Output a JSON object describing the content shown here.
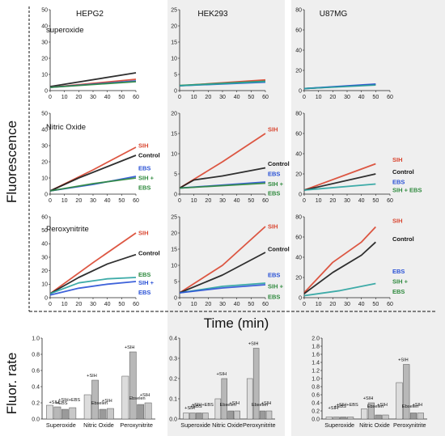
{
  "y_axis_label": "Fluorescence",
  "x_axis_label": "Time (min)",
  "rate_axis_label": "Fluor. rate",
  "colors": {
    "SIH": "#d9452f",
    "Control": "#1a1a1a",
    "EBS": "#2a52d6",
    "SIH + EBS": "#2f8a3e",
    "teal": "#2aa3a0"
  },
  "columns": [
    "HEPG2",
    "HEK293",
    "U87MG"
  ],
  "rows": [
    "superoxide",
    "Nitric Oxide",
    "Peroxynitrite"
  ],
  "chart_data": {
    "type": "line",
    "x_ticks": [
      0,
      10,
      20,
      30,
      40,
      50,
      60
    ],
    "panels": [
      {
        "col": 0,
        "row": 0,
        "ylim": [
          0,
          50
        ],
        "yticks": [
          0,
          10,
          20,
          30,
          40,
          50
        ],
        "series": [
          {
            "name": "Control",
            "color": "#1a1a1a",
            "values": [
              [
                0,
                2.5
              ],
              [
                60,
                11
              ]
            ]
          },
          {
            "name": "SIH",
            "color": "#d9452f",
            "values": [
              [
                0,
                2
              ],
              [
                60,
                7
              ]
            ]
          },
          {
            "name": "EBS",
            "color": "#2a52d6",
            "values": [
              [
                0,
                2
              ],
              [
                60,
                6
              ]
            ]
          },
          {
            "name": "SIH + EBS",
            "color": "#2f8a3e",
            "values": [
              [
                0,
                2
              ],
              [
                60,
                5.5
              ]
            ]
          }
        ],
        "labels": []
      },
      {
        "col": 1,
        "row": 0,
        "ylim": [
          0,
          25
        ],
        "yticks": [
          0,
          5,
          10,
          15,
          20,
          25
        ],
        "series": [
          {
            "name": "SIH",
            "color": "#d9452f",
            "values": [
              [
                0,
                1.5
              ],
              [
                60,
                3.3
              ]
            ]
          },
          {
            "name": "EBS",
            "color": "#2a52d6",
            "values": [
              [
                0,
                1.5
              ],
              [
                60,
                2.6
              ]
            ]
          },
          {
            "name": "SIH + EBS",
            "color": "#2f8a3e",
            "values": [
              [
                0,
                1.6
              ],
              [
                60,
                2.9
              ]
            ]
          },
          {
            "name": "Control",
            "color": "#2aa3a0",
            "values": [
              [
                0,
                1.5
              ],
              [
                60,
                2.8
              ]
            ]
          }
        ],
        "labels": []
      },
      {
        "col": 2,
        "row": 0,
        "ylim": [
          0,
          80
        ],
        "yticks": [
          0,
          20,
          40,
          60,
          80
        ],
        "series": [
          {
            "name": "Control",
            "color": "#1a1a1a",
            "values": [
              [
                0,
                2
              ],
              [
                50,
                6
              ]
            ]
          },
          {
            "name": "EBS",
            "color": "#2a52d6",
            "values": [
              [
                0,
                2
              ],
              [
                50,
                6.5
              ]
            ]
          },
          {
            "name": "SIH",
            "color": "#2aa3a0",
            "values": [
              [
                0,
                2
              ],
              [
                50,
                5.5
              ]
            ]
          }
        ],
        "labels": []
      },
      {
        "col": 0,
        "row": 1,
        "ylim": [
          0,
          50
        ],
        "yticks": [
          0,
          10,
          20,
          30,
          40,
          50
        ],
        "series": [
          {
            "name": "SIH",
            "color": "#d9452f",
            "values": [
              [
                0,
                2
              ],
              [
                30,
                15
              ],
              [
                60,
                29
              ]
            ]
          },
          {
            "name": "Control",
            "color": "#1a1a1a",
            "values": [
              [
                0,
                2
              ],
              [
                10,
                6
              ],
              [
                20,
                10
              ],
              [
                40,
                17
              ],
              [
                60,
                24
              ]
            ]
          },
          {
            "name": "EBS",
            "color": "#2a52d6",
            "values": [
              [
                0,
                2
              ],
              [
                30,
                6
              ],
              [
                60,
                11
              ]
            ]
          },
          {
            "name": "SIH + EBS",
            "color": "#2f8a3e",
            "values": [
              [
                0,
                2
              ],
              [
                30,
                6.5
              ],
              [
                60,
                10
              ]
            ]
          }
        ],
        "labels": [
          {
            "text": "SIH",
            "color": "#d9452f",
            "y": 30
          },
          {
            "text": "Control",
            "color": "#111111",
            "y": 24
          },
          {
            "text": "EBS",
            "color": "#2a52d6",
            "y": 16
          },
          {
            "text": "SIH +",
            "color": "#2f8a3e",
            "y": 10
          },
          {
            "text": "EBS",
            "color": "#2f8a3e",
            "y": 4
          }
        ]
      },
      {
        "col": 1,
        "row": 1,
        "ylim": [
          0,
          20
        ],
        "yticks": [
          0,
          5,
          10,
          15,
          20
        ],
        "series": [
          {
            "name": "SIH",
            "color": "#d9452f",
            "values": [
              [
                0,
                1.5
              ],
              [
                30,
                8
              ],
              [
                60,
                15
              ]
            ]
          },
          {
            "name": "Control",
            "color": "#1a1a1a",
            "values": [
              [
                0,
                1.5
              ],
              [
                10,
                3.5
              ],
              [
                30,
                4.5
              ],
              [
                60,
                6.5
              ]
            ]
          },
          {
            "name": "EBS",
            "color": "#2a52d6",
            "values": [
              [
                0,
                1.5
              ],
              [
                60,
                3
              ]
            ]
          },
          {
            "name": "SIH + EBS",
            "color": "#2f8a3e",
            "values": [
              [
                0,
                1.5
              ],
              [
                60,
                2.7
              ]
            ]
          }
        ],
        "labels": [
          {
            "text": "SIH",
            "color": "#d9452f",
            "y": 16
          },
          {
            "text": "Control",
            "color": "#111111",
            "y": 7.5
          },
          {
            "text": "EBS",
            "color": "#2a52d6",
            "y": 5
          },
          {
            "text": "SIH +",
            "color": "#2f8a3e",
            "y": 2.5
          },
          {
            "text": "EBS",
            "color": "#2f8a3e",
            "y": 0.2
          }
        ]
      },
      {
        "col": 2,
        "row": 1,
        "ylim": [
          0,
          80
        ],
        "yticks": [
          0,
          20,
          40,
          60,
          80
        ],
        "series": [
          {
            "name": "SIH",
            "color": "#d9452f",
            "values": [
              [
                0,
                4
              ],
              [
                50,
                30
              ]
            ]
          },
          {
            "name": "Control",
            "color": "#1a1a1a",
            "values": [
              [
                0,
                4
              ],
              [
                50,
                20
              ]
            ]
          },
          {
            "name": "EBS",
            "color": "#2aa3a0",
            "values": [
              [
                0,
                4
              ],
              [
                50,
                10
              ]
            ]
          }
        ],
        "labels": [
          {
            "text": "SIH",
            "color": "#d9452f",
            "y": 34
          },
          {
            "text": "Control",
            "color": "#111111",
            "y": 22
          },
          {
            "text": "EBS",
            "color": "#2a52d6",
            "y": 12
          },
          {
            "text": "SIH + EBS",
            "color": "#2f8a3e",
            "y": 4
          }
        ]
      },
      {
        "col": 0,
        "row": 2,
        "ylim": [
          0,
          60
        ],
        "yticks": [
          0,
          10,
          20,
          30,
          40,
          50,
          60
        ],
        "series": [
          {
            "name": "SIH",
            "color": "#d9452f",
            "values": [
              [
                0,
                3
              ],
              [
                30,
                26
              ],
              [
                60,
                48
              ]
            ]
          },
          {
            "name": "Control",
            "color": "#1a1a1a",
            "values": [
              [
                0,
                3
              ],
              [
                20,
                15
              ],
              [
                40,
                25
              ],
              [
                60,
                32
              ]
            ]
          },
          {
            "name": "SIH + EBS",
            "color": "#2aa3a0",
            "values": [
              [
                0,
                3
              ],
              [
                20,
                11
              ],
              [
                40,
                14
              ],
              [
                60,
                15
              ]
            ]
          },
          {
            "name": "EBS",
            "color": "#2a52d6",
            "values": [
              [
                0,
                2
              ],
              [
                20,
                7
              ],
              [
                40,
                10
              ],
              [
                60,
                12
              ]
            ]
          }
        ],
        "labels": [
          {
            "text": "SIH",
            "color": "#d9452f",
            "y": 48
          },
          {
            "text": "Control",
            "color": "#111111",
            "y": 33
          },
          {
            "text": "EBS",
            "color": "#2f8a3e",
            "y": 17
          },
          {
            "text": "SIH +",
            "color": "#2a52d6",
            "y": 11
          },
          {
            "text": "EBS",
            "color": "#2a52d6",
            "y": 4
          }
        ]
      },
      {
        "col": 1,
        "row": 2,
        "ylim": [
          0,
          25
        ],
        "yticks": [
          0,
          5,
          10,
          15,
          20,
          25
        ],
        "series": [
          {
            "name": "SIH",
            "color": "#d9452f",
            "values": [
              [
                0,
                1.5
              ],
              [
                30,
                10
              ],
              [
                60,
                22
              ]
            ]
          },
          {
            "name": "Control",
            "color": "#1a1a1a",
            "values": [
              [
                0,
                1.5
              ],
              [
                30,
                7
              ],
              [
                60,
                14
              ]
            ]
          },
          {
            "name": "SIH + EBS",
            "color": "#2aa3a0",
            "values": [
              [
                0,
                1.5
              ],
              [
                30,
                3.5
              ],
              [
                60,
                4.5
              ]
            ]
          },
          {
            "name": "EBS",
            "color": "#2a52d6",
            "values": [
              [
                0,
                1.5
              ],
              [
                30,
                3
              ],
              [
                60,
                4
              ]
            ]
          }
        ],
        "labels": [
          {
            "text": "SIH",
            "color": "#d9452f",
            "y": 22
          },
          {
            "text": "Control",
            "color": "#111111",
            "y": 15
          },
          {
            "text": "EBS",
            "color": "#2a52d6",
            "y": 7
          },
          {
            "text": "SIH +",
            "color": "#2f8a3e",
            "y": 3.5
          },
          {
            "text": "EBS",
            "color": "#2f8a3e",
            "y": 0.3
          }
        ]
      },
      {
        "col": 2,
        "row": 2,
        "ylim": [
          0,
          80
        ],
        "yticks": [
          0,
          20,
          40,
          60,
          80
        ],
        "series": [
          {
            "name": "SIH",
            "color": "#d9452f",
            "values": [
              [
                0,
                5
              ],
              [
                20,
                35
              ],
              [
                40,
                55
              ],
              [
                50,
                70
              ]
            ]
          },
          {
            "name": "Control",
            "color": "#1a1a1a",
            "values": [
              [
                0,
                4
              ],
              [
                20,
                25
              ],
              [
                40,
                42
              ],
              [
                50,
                55
              ]
            ]
          },
          {
            "name": "EBS",
            "color": "#2aa3a0",
            "values": [
              [
                0,
                2
              ],
              [
                25,
                7
              ],
              [
                50,
                14
              ]
            ]
          }
        ],
        "labels": [
          {
            "text": "SIH",
            "color": "#d9452f",
            "y": 76
          },
          {
            "text": "Control",
            "color": "#111111",
            "y": 58
          },
          {
            "text": "EBS",
            "color": "#2a52d6",
            "y": 26
          },
          {
            "text": "SIH +",
            "color": "#2f8a3e",
            "y": 16
          },
          {
            "text": "EBS",
            "color": "#2f8a3e",
            "y": 6
          }
        ]
      }
    ],
    "bar_panels": [
      {
        "col": 0,
        "ylim": [
          0,
          1.0
        ],
        "yticks": [
          "0.0",
          "0.2",
          "0.4",
          "0.6",
          "0.8",
          "1.0"
        ],
        "categories": [
          "Superoxide",
          "Nitric Oxide",
          "Peroxynitrite"
        ],
        "values": [
          [
            0.17,
            0.15,
            0.12,
            0.14
          ],
          [
            0.3,
            0.48,
            0.12,
            0.13
          ],
          [
            0.53,
            0.83,
            0.18,
            0.2
          ]
        ],
        "annotations": [
          [
            "+SIH",
            "+EBS",
            "+SIH+EBS"
          ],
          [
            "+SIH",
            "Ebselen",
            "+SIH"
          ],
          [
            "+SIH",
            "Ebselen",
            "+SIH"
          ]
        ]
      },
      {
        "col": 1,
        "ylim": [
          0,
          0.4
        ],
        "yticks": [
          "0.0",
          "0.1",
          "0.2",
          "0.3",
          "0.4"
        ],
        "categories": [
          "Superoxide",
          "Nitric Oxide",
          "Peroxynitrite"
        ],
        "values": [
          [
            0.03,
            0.03,
            0.03,
            0.03
          ],
          [
            0.1,
            0.2,
            0.04,
            0.04
          ],
          [
            0.2,
            0.35,
            0.04,
            0.04
          ]
        ],
        "annotations": [
          [
            "+SIH",
            "+EBS",
            "+SIH+EBS"
          ],
          [
            "+SIH",
            "Ebselen",
            "+SIH"
          ],
          [
            "+SIH",
            "Ebselen",
            "+SIH"
          ]
        ]
      },
      {
        "col": 2,
        "ylim": [
          0,
          2.0
        ],
        "yticks": [
          "0.0",
          "0.2",
          "0.4",
          "0.6",
          "0.8",
          "1.0",
          "1.2",
          "1.4",
          "1.6",
          "1.8",
          "2.0"
        ],
        "categories": [
          "Superoxide",
          "Nitric Oxide",
          "Peroxynitrite"
        ],
        "values": [
          [
            0.05,
            0.05,
            0.05,
            0.05
          ],
          [
            0.25,
            0.4,
            0.1,
            0.1
          ],
          [
            0.9,
            1.35,
            0.15,
            0.15
          ]
        ],
        "annotations": [
          [
            "+SIH",
            "+EBS",
            "+SIH+EBS"
          ],
          [
            "+SIH",
            "Ebselen",
            "+SIH"
          ],
          [
            "+SIH",
            "Ebselen",
            "+SIH"
          ]
        ]
      }
    ]
  }
}
